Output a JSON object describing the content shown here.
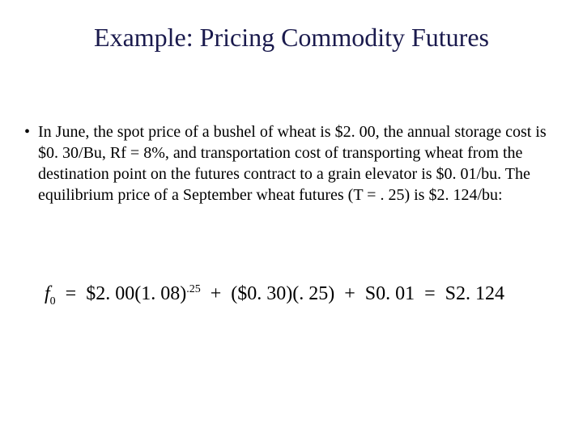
{
  "colors": {
    "background": "#ffffff",
    "title": "#1a1a4d",
    "body_text": "#000000"
  },
  "typography": {
    "family": "Times New Roman",
    "title_fontsize": 32,
    "body_fontsize": 20,
    "formula_fontsize": 24
  },
  "title": "Example: Pricing Commodity Futures",
  "bullet": {
    "mark": "•",
    "text": "In June, the spot price of  a bushel of wheat is $2. 00, the annual storage cost is $0. 30/Bu, Rf = 8%, and transportation cost of transporting wheat from the destination point on the futures contract to a grain elevator is $0. 01/bu.  The equilibrium price of a September wheat futures (T = . 25) is $2. 124/bu:"
  },
  "formula": {
    "f_symbol": "f",
    "f_sub": "0",
    "eq1": "=",
    "spot_base": "$2. 00(1. 08)",
    "spot_exp": ".25",
    "plus1": "+",
    "storage": "($0. 30)(. 25)",
    "plus2": "+",
    "transport": "S0. 01",
    "eq2": "=",
    "result": "S2. 124"
  }
}
